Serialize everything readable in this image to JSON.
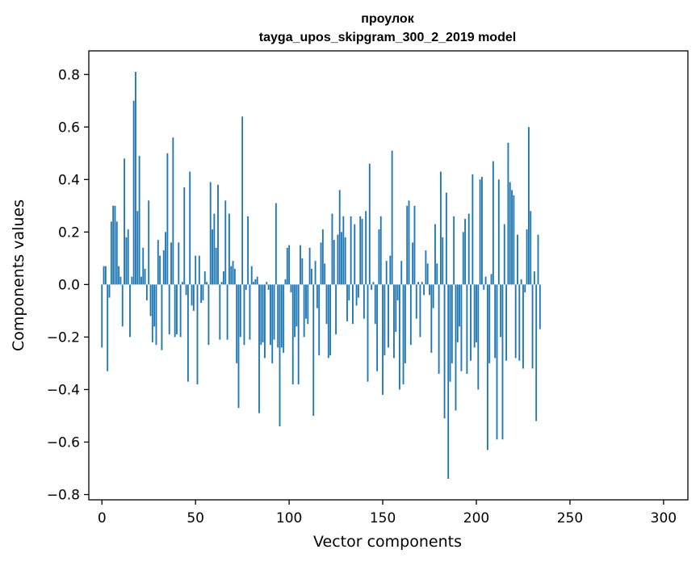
{
  "chart_data": {
    "type": "bar",
    "title": "проулок",
    "subtitle": "tayga_upos_skipgram_300_2_2019 model",
    "xlabel": "Vector components",
    "ylabel": "Components values",
    "xlim": [
      -7,
      313
    ],
    "ylim": [
      -0.82,
      0.89
    ],
    "xticks": [
      0,
      50,
      100,
      150,
      200,
      250,
      300
    ],
    "yticks": [
      -0.8,
      -0.6,
      -0.4,
      -0.2,
      0.0,
      0.2,
      0.4,
      0.6,
      0.8
    ],
    "xtick_labels": [
      "0",
      "50",
      "100",
      "150",
      "200",
      "250",
      "300"
    ],
    "ytick_labels": [
      "−0.8",
      "−0.6",
      "−0.4",
      "−0.2",
      "0.0",
      "0.2",
      "0.4",
      "0.6",
      "0.8"
    ],
    "bar_color": "#1f77b4",
    "values": [
      -0.24,
      0.07,
      0.07,
      -0.33,
      -0.05,
      0.24,
      0.3,
      0.3,
      0.24,
      0.07,
      0.03,
      -0.16,
      0.48,
      0.18,
      0.21,
      -0.2,
      0.03,
      0.7,
      0.81,
      0.28,
      0.49,
      0.03,
      0.14,
      0.06,
      -0.06,
      0.32,
      -0.12,
      -0.22,
      -0.16,
      -0.23,
      0.17,
      0.11,
      -0.25,
      0.13,
      0.2,
      0.5,
      -0.19,
      0.16,
      0.56,
      -0.2,
      -0.19,
      0.16,
      -0.2,
      0.01,
      0.37,
      -0.04,
      -0.37,
      0.43,
      -0.08,
      -0.1,
      0.11,
      -0.38,
      0.11,
      -0.07,
      -0.06,
      0.05,
      0.01,
      -0.23,
      0.39,
      0.21,
      0.27,
      0.14,
      0.38,
      -0.21,
      0.01,
      0.05,
      0.32,
      -0.21,
      0.27,
      0.07,
      0.09,
      0.06,
      -0.3,
      -0.47,
      -0.2,
      0.64,
      -0.23,
      -0.02,
      0.26,
      -0.21,
      0.07,
      0.01,
      0.02,
      0.03,
      -0.49,
      -0.23,
      -0.22,
      -0.28,
      0.01,
      -0.02,
      -0.23,
      -0.3,
      -0.21,
      0.31,
      -0.24,
      -0.54,
      -0.24,
      -0.26,
      0.02,
      0.14,
      0.15,
      -0.03,
      -0.38,
      -0.2,
      -0.16,
      -0.38,
      0.15,
      0.1,
      -0.2,
      -0.13,
      -0.15,
      0.14,
      0.06,
      -0.5,
      0.09,
      -0.09,
      -0.27,
      0.16,
      0.21,
      0.08,
      -0.15,
      -0.28,
      -0.27,
      0.27,
      0.17,
      -0.19,
      0.19,
      0.36,
      0.2,
      0.26,
      0.18,
      -0.14,
      -0.06,
      0.26,
      -0.15,
      0.23,
      -0.08,
      -0.05,
      0.26,
      0.25,
      -0.13,
      0.28,
      -0.37,
      0.46,
      -0.02,
      0.01,
      -0.15,
      -0.33,
      0.21,
      0.26,
      -0.42,
      -0.27,
      0.09,
      -0.24,
      0.11,
      0.51,
      -0.28,
      -0.18,
      -0.06,
      -0.4,
      0.09,
      -0.38,
      -0.3,
      0.3,
      0.32,
      -0.23,
      0.16,
      0.3,
      -0.13,
      0.01,
      -0.2,
      0.01,
      -0.04,
      0.13,
      0.08,
      -0.04,
      -0.26,
      -0.09,
      0.23,
      0.08,
      -0.34,
      0.43,
      0.18,
      -0.51,
      0.35,
      -0.74,
      -0.37,
      -0.3,
      0.26,
      -0.48,
      -0.22,
      -0.16,
      -0.33,
      0.2,
      0.25,
      -0.34,
      0.27,
      -0.29,
      0.42,
      -0.24,
      -0.22,
      -0.4,
      0.4,
      0.41,
      -0.02,
      0.03,
      -0.63,
      -0.3,
      0.04,
      0.47,
      -0.28,
      -0.59,
      0.4,
      -0.2,
      -0.59,
      0.23,
      -0.29,
      0.54,
      0.39,
      0.36,
      0.34,
      -0.28,
      0.19,
      -0.29,
      0.02,
      -0.32,
      -0.03,
      0.21,
      0.6,
      0.28,
      -0.32,
      0.05,
      -0.52,
      0.19,
      -0.17
    ]
  }
}
